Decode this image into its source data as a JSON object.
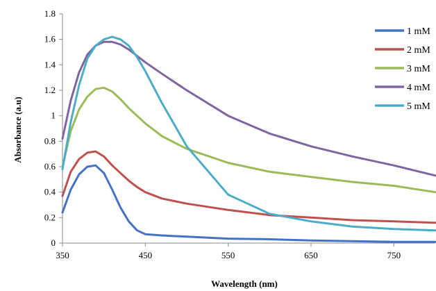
{
  "chart_data": {
    "type": "line",
    "xlabel": "Wavelength (nm)",
    "ylabel": "Absorbance (a.u)",
    "xlim": [
      350,
      800
    ],
    "ylim": [
      0,
      1.8
    ],
    "x_ticks": [
      "350",
      "450",
      "550",
      "650",
      "750"
    ],
    "x_tick_values": [
      350,
      450,
      550,
      650,
      750
    ],
    "y_ticks": [
      "0",
      "0.2",
      "0.4",
      "0.6",
      "0.8",
      "1",
      "1.2",
      "1.4",
      "1.6",
      "1.8"
    ],
    "y_tick_values": [
      0,
      0.2,
      0.4,
      0.6,
      0.8,
      1.0,
      1.2,
      1.4,
      1.6,
      1.8
    ],
    "grid": false,
    "legend_position": "right",
    "x": [
      350,
      360,
      370,
      380,
      390,
      400,
      410,
      420,
      430,
      440,
      450,
      470,
      500,
      550,
      600,
      650,
      700,
      750,
      800
    ],
    "series": [
      {
        "name": "1 mM",
        "color": "#4472c4",
        "values": [
          0.24,
          0.42,
          0.54,
          0.6,
          0.61,
          0.55,
          0.42,
          0.28,
          0.17,
          0.1,
          0.07,
          0.06,
          0.05,
          0.035,
          0.03,
          0.02,
          0.015,
          0.01,
          0.01
        ]
      },
      {
        "name": "2 mM",
        "color": "#c0504d",
        "values": [
          0.37,
          0.56,
          0.66,
          0.71,
          0.72,
          0.68,
          0.61,
          0.55,
          0.49,
          0.44,
          0.4,
          0.35,
          0.31,
          0.26,
          0.22,
          0.2,
          0.18,
          0.17,
          0.16
        ]
      },
      {
        "name": "3 mM",
        "color": "#9bbb59",
        "values": [
          0.6,
          0.88,
          1.05,
          1.15,
          1.21,
          1.22,
          1.19,
          1.13,
          1.06,
          1.0,
          0.94,
          0.84,
          0.74,
          0.63,
          0.56,
          0.52,
          0.48,
          0.45,
          0.4
        ]
      },
      {
        "name": "4 mM",
        "color": "#8064a2",
        "values": [
          0.82,
          1.12,
          1.34,
          1.48,
          1.55,
          1.58,
          1.58,
          1.56,
          1.52,
          1.47,
          1.42,
          1.33,
          1.2,
          1.0,
          0.86,
          0.76,
          0.68,
          0.61,
          0.53
        ]
      },
      {
        "name": "5 mM",
        "color": "#4bacc6",
        "values": [
          0.58,
          0.95,
          1.24,
          1.45,
          1.55,
          1.6,
          1.62,
          1.6,
          1.55,
          1.46,
          1.35,
          1.1,
          0.76,
          0.38,
          0.23,
          0.17,
          0.13,
          0.11,
          0.1
        ]
      }
    ]
  }
}
